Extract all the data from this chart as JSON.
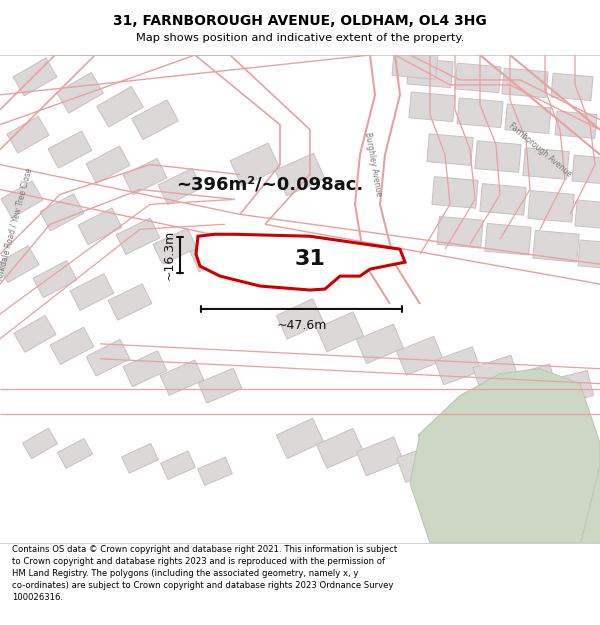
{
  "title_line1": "31, FARNBOROUGH AVENUE, OLDHAM, OL4 3HG",
  "title_line2": "Map shows position and indicative extent of the property.",
  "footer_text": "Contains OS data © Crown copyright and database right 2021. This information is subject to Crown copyright and database rights 2023 and is reproduced with the permission of HM Land Registry. The polygons (including the associated geometry, namely x, y co-ordinates) are subject to Crown copyright and database rights 2023 Ordnance Survey 100026316.",
  "area_label": "~396m²/~0.098ac.",
  "property_number": "31",
  "width_label": "~47.6m",
  "height_label": "~16.3m",
  "map_bg": "#f7f3f3",
  "road_color": "#e8a0a0",
  "road_fill": "#f7f3f3",
  "block_fill": "#ddd8d8",
  "block_edge": "#c8c0c0",
  "highlight_color": "#cc0000",
  "green_fill": "#ccd8c4",
  "green_edge": "#b8c8b0",
  "title_bg": "#ffffff",
  "footer_bg": "#ffffff",
  "dim_color": "#111111",
  "label_color": "#777777"
}
